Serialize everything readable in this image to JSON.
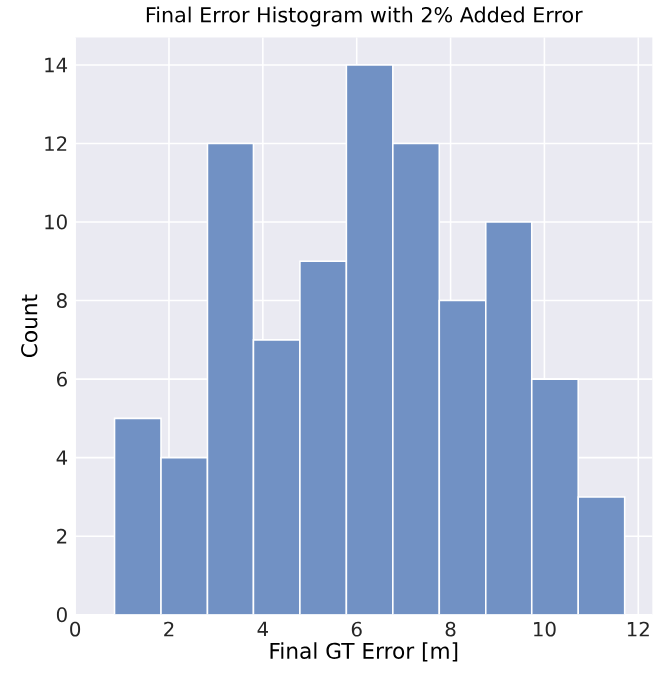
{
  "chart_data": {
    "type": "histogram",
    "title": "Final Error Histogram with 2% Added Error",
    "xlabel": "Final GT Error [m]",
    "ylabel": "Count",
    "bins": [
      0.84,
      1.83,
      2.82,
      3.8,
      4.79,
      5.78,
      6.77,
      7.76,
      8.75,
      9.73,
      10.72,
      11.71
    ],
    "values": [
      5,
      4,
      12,
      7,
      9,
      14,
      12,
      8,
      10,
      6,
      3
    ],
    "color": "#7191c4",
    "xlim": [
      0,
      12.3
    ],
    "ylim": [
      0,
      14.7
    ],
    "xticks": [
      0,
      2,
      4,
      6,
      8,
      10,
      12
    ],
    "yticks": [
      0,
      2,
      4,
      6,
      8,
      10,
      12,
      14
    ],
    "grid": true
  }
}
